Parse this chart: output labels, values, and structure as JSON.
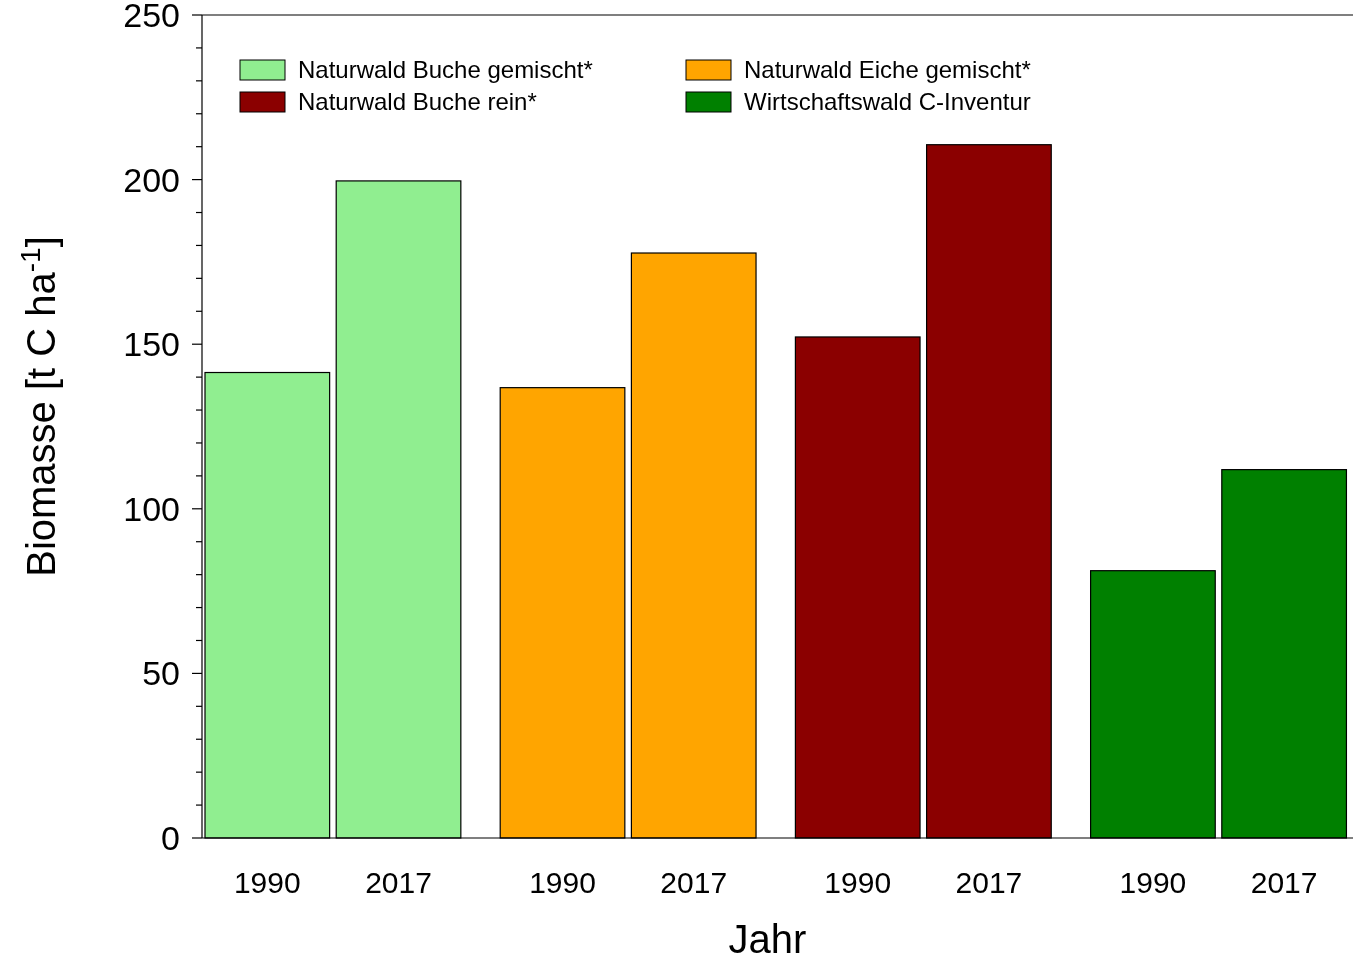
{
  "chart_data": {
    "type": "bar",
    "xlabel": "Jahr",
    "ylabel": "Biomasse [t C ha$^{-1}$]",
    "categories": [
      "1990",
      "2017",
      "1990",
      "2017",
      "1990",
      "2017",
      "1990",
      "2017"
    ],
    "series": [
      {
        "name": "Naturwald Buche gemischt*",
        "color": "#90ee90",
        "values": [
          141.4,
          199.6,
          null,
          null,
          null,
          null,
          null,
          null
        ]
      },
      {
        "name": "Naturwald Eiche gemischt*",
        "color": "#ffa500",
        "values": [
          null,
          null,
          136.8,
          177.7,
          null,
          null,
          null,
          null
        ]
      },
      {
        "name": "Naturwald Buche rein*",
        "color": "#8b0000",
        "values": [
          null,
          null,
          null,
          null,
          152.2,
          210.6,
          null,
          null
        ]
      },
      {
        "name": "Wirtschaftswald C-Inventur",
        "color": "#008000",
        "values": [
          null,
          null,
          null,
          null,
          null,
          null,
          81.2,
          111.9
        ]
      }
    ],
    "ylim": [
      0,
      250
    ],
    "yticks": [
      0,
      {
        "value": 10,
        "label": null
      },
      {
        "value": 20,
        "label": null
      },
      {
        "value": 30,
        "label": null
      },
      {
        "value": 40,
        "label": null
      },
      50,
      {
        "value": 60,
        "label": null
      },
      {
        "value": 70,
        "label": null
      },
      {
        "value": 80,
        "label": null
      },
      {
        "value": 90,
        "label": null
      },
      100,
      {
        "value": 110,
        "label": null
      },
      {
        "value": 120,
        "label": null
      },
      {
        "value": 130,
        "label": null
      },
      {
        "value": 140,
        "label": null
      },
      150,
      {
        "value": 160,
        "label": null
      },
      {
        "value": 170,
        "label": null
      },
      {
        "value": 180,
        "label": null
      },
      {
        "value": 190,
        "label": null
      },
      200,
      {
        "value": 210,
        "label": null
      },
      {
        "value": 220,
        "label": null
      },
      {
        "value": 230,
        "label": null
      },
      {
        "value": 240,
        "label": null
      },
      250
    ],
    "grid": false,
    "legend": "top left"
  }
}
